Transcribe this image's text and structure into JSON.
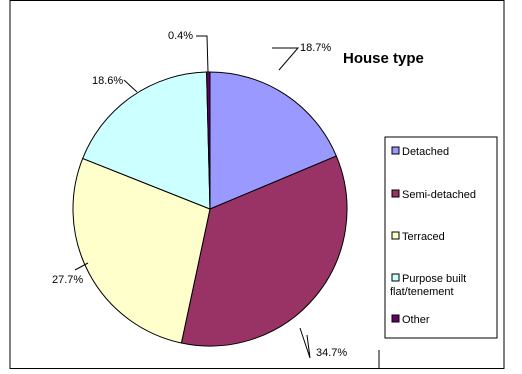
{
  "chart_data": {
    "type": "pie",
    "title": "House type",
    "categories": [
      "Detached",
      "Semi-detached",
      "Terraced",
      "Purpose built flat/tenement",
      "Other"
    ],
    "values": [
      18.7,
      34.7,
      27.7,
      18.6,
      0.4
    ],
    "labels": [
      "18.7%",
      "34.7%",
      "27.7%",
      "18.6%",
      "0.4%"
    ],
    "colors": [
      "#9999ff",
      "#993366",
      "#ffffcc",
      "#ccffff",
      "#660066"
    ],
    "legend": {
      "placement": "right",
      "entries": [
        "Detached",
        "Semi-detached",
        "Terraced",
        "Purpose built flat/tenement",
        "Other"
      ]
    }
  }
}
